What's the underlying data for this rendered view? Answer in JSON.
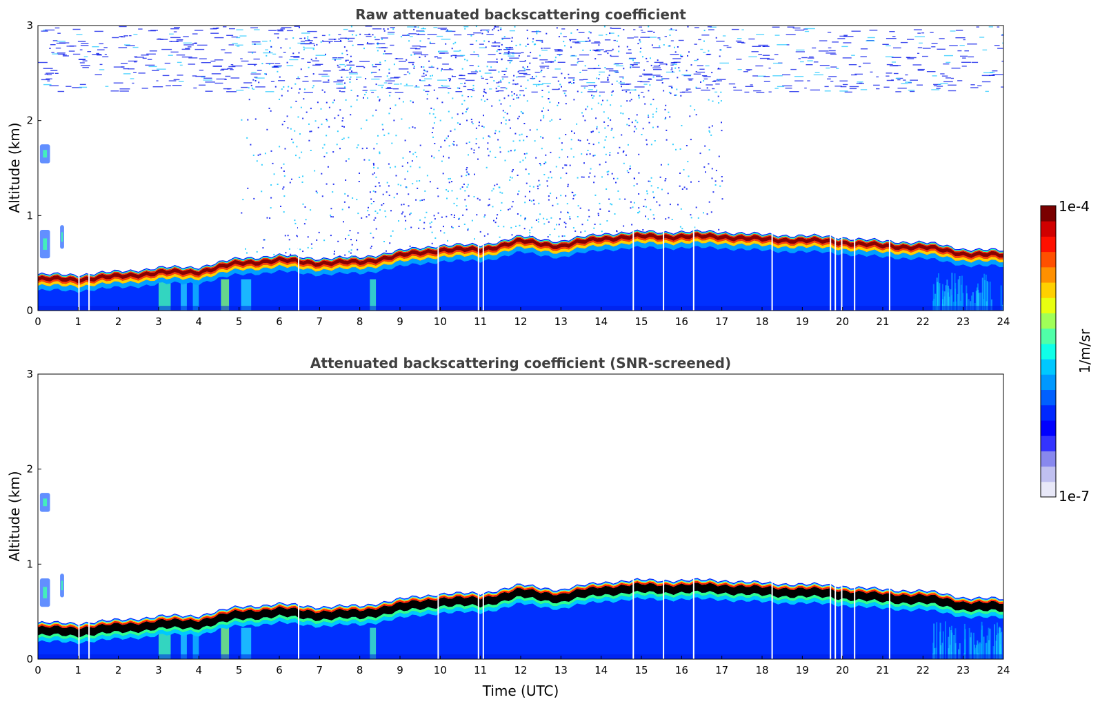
{
  "chart_data": [
    {
      "type": "heatmap",
      "title": "Raw attenuated backscattering coefficient",
      "xlabel": "",
      "ylabel": "Altitude (km)",
      "xlim": [
        0,
        24
      ],
      "ylim": [
        0,
        3
      ],
      "xticks": [
        "0",
        "1",
        "2",
        "3",
        "4",
        "5",
        "6",
        "7",
        "8",
        "9",
        "10",
        "11",
        "12",
        "13",
        "14",
        "15",
        "16",
        "17",
        "18",
        "19",
        "20",
        "21",
        "22",
        "23",
        "24"
      ],
      "yticks": [
        "0",
        "1",
        "2",
        "3"
      ],
      "layer_top_km": {
        "time": [
          0,
          1,
          2,
          3,
          4,
          5,
          6,
          7,
          8,
          9,
          10,
          11,
          12,
          13,
          14,
          15,
          16,
          17,
          18,
          19,
          20,
          21,
          22,
          23,
          24
        ],
        "altitude": [
          0.35,
          0.35,
          0.38,
          0.42,
          0.43,
          0.52,
          0.55,
          0.52,
          0.53,
          0.6,
          0.66,
          0.66,
          0.75,
          0.7,
          0.78,
          0.8,
          0.8,
          0.8,
          0.77,
          0.76,
          0.74,
          0.7,
          0.69,
          0.62,
          0.6
        ]
      },
      "noise_band_km": [
        1.3,
        3.0
      ],
      "gaps_utc": [
        1.02,
        1.27,
        6.48,
        9.95,
        10.95,
        11.07,
        14.8,
        15.55,
        16.3,
        18.25,
        19.7,
        19.82,
        19.98,
        20.3,
        21.17
      ],
      "isolated_features": [
        {
          "time_range": [
            0.05,
            0.3
          ],
          "altitude_range": [
            0.55,
            0.85
          ]
        },
        {
          "time_range": [
            0.05,
            0.3
          ],
          "altitude_range": [
            1.55,
            1.75
          ]
        },
        {
          "time_range": [
            0.55,
            0.65
          ],
          "altitude_range": [
            0.65,
            0.9
          ]
        }
      ]
    },
    {
      "type": "heatmap",
      "title": "Attenuated backscattering coefficient (SNR-screened)",
      "xlabel": "Time (UTC)",
      "ylabel": "Altitude (km)",
      "xlim": [
        0,
        24
      ],
      "ylim": [
        0,
        3
      ],
      "xticks": [
        "0",
        "1",
        "2",
        "3",
        "4",
        "5",
        "6",
        "7",
        "8",
        "9",
        "10",
        "11",
        "12",
        "13",
        "14",
        "15",
        "16",
        "17",
        "18",
        "19",
        "20",
        "21",
        "22",
        "23",
        "24"
      ],
      "yticks": [
        "0",
        "1",
        "2",
        "3"
      ],
      "saturated_core_color": "#000000"
    }
  ],
  "colorbar": {
    "max_label": "1e-4",
    "min_label": "1e-7",
    "unit_label": "1/m/sr",
    "colors": [
      "#e8e8f8",
      "#c0c0f0",
      "#8888ee",
      "#3333ff",
      "#0000ff",
      "#0028ff",
      "#0060ff",
      "#0098ff",
      "#00c8ff",
      "#10ffe8",
      "#50ffa8",
      "#a0ff58",
      "#e8ff10",
      "#ffd000",
      "#ff9000",
      "#ff5000",
      "#ff1000",
      "#d00000",
      "#7a0000"
    ]
  }
}
